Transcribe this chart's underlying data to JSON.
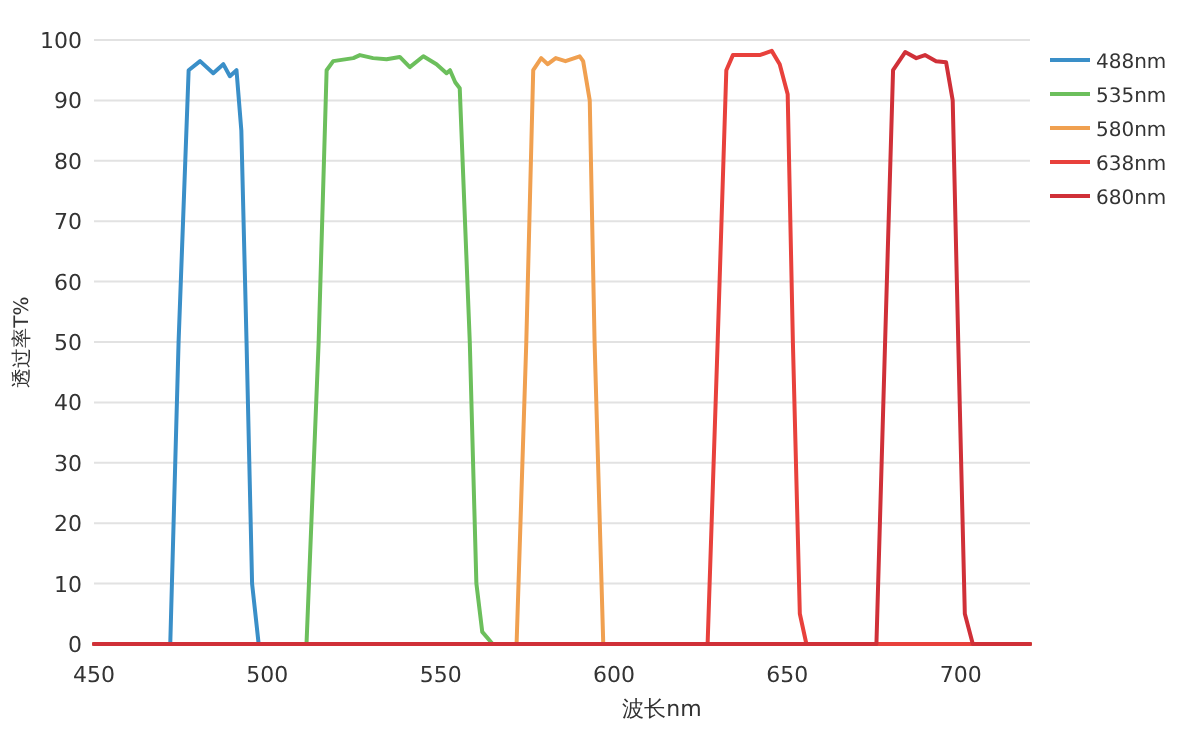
{
  "chart_data": {
    "type": "line",
    "xlabel": "波长nm",
    "ylabel": "透过率T%",
    "xlim": [
      450,
      720
    ],
    "ylim": [
      0,
      100
    ],
    "xticks": [
      450,
      500,
      550,
      600,
      650,
      700
    ],
    "yticks": [
      0,
      10,
      20,
      30,
      40,
      50,
      60,
      70,
      80,
      90,
      100
    ],
    "grid": "y",
    "legend": "top right",
    "marker": "none",
    "line_style": "solid",
    "series": [
      {
        "name": "488nm",
        "color": "#3a8fc8",
        "x": [
          450,
          472,
          474.4,
          477.3,
          480.6,
          484.4,
          487.3,
          489.2,
          491.1,
          492.5,
          494,
          495.6,
          497.5,
          720
        ],
        "values": [
          0,
          0,
          50,
          95,
          96.5,
          94.5,
          96,
          94,
          95,
          85,
          50,
          10,
          0,
          0
        ]
      },
      {
        "name": "535nm",
        "color": "#6cbf5c",
        "x": [
          450,
          511.3,
          514.8,
          517.1,
          519,
          524.8,
          526.7,
          530.5,
          534.4,
          538.2,
          541.1,
          545,
          548.8,
          551.7,
          552.7,
          554.2,
          555.5,
          558.4,
          560.3,
          562,
          565,
          720
        ],
        "values": [
          0,
          0,
          50,
          95,
          96.5,
          97,
          97.5,
          97,
          96.8,
          97.2,
          95.5,
          97.3,
          96,
          94.5,
          95,
          93,
          92,
          50,
          10,
          2,
          0,
          0
        ]
      },
      {
        "name": "580nm",
        "color": "#f0a050",
        "x": [
          450,
          571.9,
          574.7,
          576.7,
          579,
          580.9,
          583.2,
          586,
          590.1,
          591.1,
          593,
          594.4,
          596.9,
          720
        ],
        "values": [
          0,
          0,
          50,
          95,
          97,
          96,
          97,
          96.5,
          97.3,
          96.5,
          90,
          50,
          0,
          0
        ]
      },
      {
        "name": "638nm",
        "color": "#e8413c",
        "x": [
          450,
          627,
          629.9,
          632.4,
          634.3,
          642,
          645.5,
          647.8,
          650.1,
          651.6,
          653.6,
          655.5,
          720
        ],
        "values": [
          0,
          0,
          50,
          95,
          97.5,
          97.5,
          98.2,
          96,
          91,
          50,
          5,
          0,
          0
        ]
      },
      {
        "name": "680nm",
        "color": "#d03038",
        "x": [
          450,
          675.7,
          678.2,
          680.5,
          684,
          687.2,
          689.7,
          692.9,
          695.8,
          697.7,
          699.3,
          701.2,
          703.5,
          720
        ],
        "values": [
          0,
          0,
          50,
          95,
          98,
          97,
          97.5,
          96.5,
          96.3,
          90,
          50,
          5,
          0,
          0
        ]
      }
    ]
  }
}
